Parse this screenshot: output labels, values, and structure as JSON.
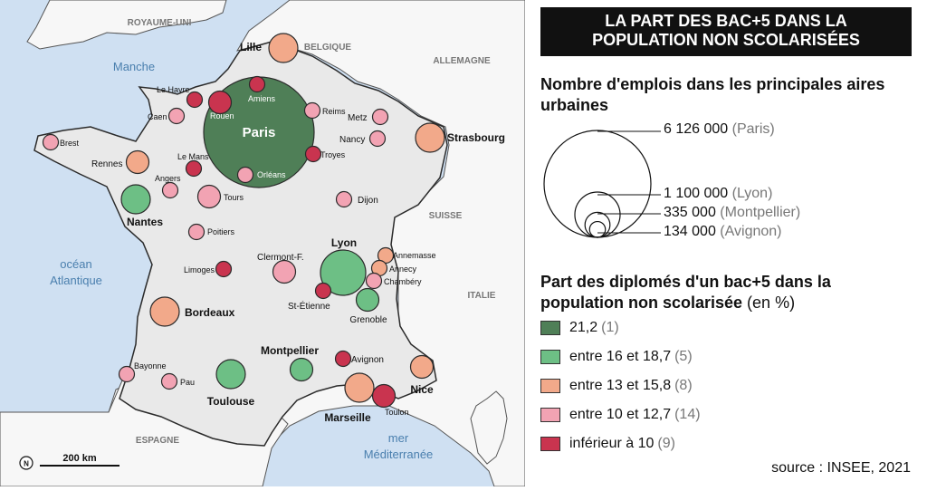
{
  "title": [
    "LA PART DES BAC+5 DANS LA",
    "POPULATION NON SCOLARISÉES"
  ],
  "colors": {
    "sea": "#cfe0f2",
    "land_france": "#e9e9e9",
    "land_other": "#f7f7f7",
    "border": "#2b2b2b",
    "class_1": "#4f7f57",
    "class_2": "#6dbf85",
    "class_3": "#f2a98a",
    "class_4": "#f2a3b3",
    "class_5": "#c9344f"
  },
  "map": {
    "sea_labels": [
      {
        "id": "manche",
        "lines": [
          "Manche"
        ]
      },
      {
        "id": "ocean",
        "lines": [
          "océan",
          "Atlantique"
        ]
      },
      {
        "id": "mer",
        "lines": [
          "mer",
          "Méditerranée"
        ]
      }
    ],
    "country_labels": [
      "ROYAUME-UNI",
      "BELGIQUE",
      "ALLEMAGNE",
      "SUISSE",
      "ITALIE",
      "ESPAGNE"
    ],
    "scale_label": "200 km",
    "north_label": "N",
    "cities": [
      {
        "name": "Paris",
        "cls": 1,
        "size": "xl",
        "bold": true
      },
      {
        "name": "Lyon",
        "cls": 2,
        "size": "l",
        "bold": true
      },
      {
        "name": "Nantes",
        "cls": 2,
        "size": "m",
        "bold": true
      },
      {
        "name": "Toulouse",
        "cls": 2,
        "size": "m",
        "bold": true
      },
      {
        "name": "Montpellier",
        "cls": 2,
        "size": "s",
        "bold": true
      },
      {
        "name": "Grenoble",
        "cls": 2,
        "size": "s",
        "bold": false
      },
      {
        "name": "Lille",
        "cls": 3,
        "size": "m",
        "bold": true
      },
      {
        "name": "Strasbourg",
        "cls": 3,
        "size": "m",
        "bold": true
      },
      {
        "name": "Rennes",
        "cls": 3,
        "size": "s",
        "bold": false
      },
      {
        "name": "Bordeaux",
        "cls": 3,
        "size": "m",
        "bold": true
      },
      {
        "name": "Marseille",
        "cls": 3,
        "size": "m",
        "bold": true
      },
      {
        "name": "Nice",
        "cls": 3,
        "size": "s",
        "bold": true
      },
      {
        "name": "Annemasse",
        "cls": 3,
        "size": "xs",
        "bold": false
      },
      {
        "name": "Annecy",
        "cls": 3,
        "size": "xs",
        "bold": false
      },
      {
        "name": "Brest",
        "cls": 4,
        "size": "xs",
        "bold": false
      },
      {
        "name": "Caen",
        "cls": 4,
        "size": "xs",
        "bold": false
      },
      {
        "name": "Reims",
        "cls": 4,
        "size": "xs",
        "bold": false
      },
      {
        "name": "Metz",
        "cls": 4,
        "size": "xs",
        "bold": false
      },
      {
        "name": "Nancy",
        "cls": 4,
        "size": "xs",
        "bold": false
      },
      {
        "name": "Angers",
        "cls": 4,
        "size": "xs",
        "bold": false
      },
      {
        "name": "Tours",
        "cls": 4,
        "size": "s",
        "bold": false
      },
      {
        "name": "Dijon",
        "cls": 4,
        "size": "xs",
        "bold": false
      },
      {
        "name": "Poitiers",
        "cls": 4,
        "size": "xs",
        "bold": false
      },
      {
        "name": "Clermont-F.",
        "cls": 4,
        "size": "s",
        "bold": false
      },
      {
        "name": "Orléans",
        "cls": 4,
        "size": "xs",
        "bold": false
      },
      {
        "name": "Chambéry",
        "cls": 4,
        "size": "xs",
        "bold": false
      },
      {
        "name": "Bayonne",
        "cls": 4,
        "size": "xs",
        "bold": false
      },
      {
        "name": "Pau",
        "cls": 4,
        "size": "xs",
        "bold": false
      },
      {
        "name": "Le Havre",
        "cls": 5,
        "size": "xs",
        "bold": false
      },
      {
        "name": "Rouen",
        "cls": 5,
        "size": "s",
        "bold": false
      },
      {
        "name": "Amiens",
        "cls": 5,
        "size": "xs",
        "bold": false
      },
      {
        "name": "Troyes",
        "cls": 5,
        "size": "xs",
        "bold": false
      },
      {
        "name": "Le Mans",
        "cls": 5,
        "size": "xs",
        "bold": false
      },
      {
        "name": "Limoges",
        "cls": 5,
        "size": "xs",
        "bold": false
      },
      {
        "name": "St-Étienne",
        "cls": 5,
        "size": "xs",
        "bold": false
      },
      {
        "name": "Avignon",
        "cls": 5,
        "size": "xs",
        "bold": false
      },
      {
        "name": "Toulon",
        "cls": 5,
        "size": "s",
        "bold": false
      }
    ]
  },
  "legend": {
    "size_title": "Nombre d'emplois dans les principales aires urbaines",
    "size_items": [
      {
        "value": "6 126 000",
        "name": "(Paris)",
        "jobs": 6126000
      },
      {
        "value": "1 100 000",
        "name": "(Lyon)",
        "jobs": 1100000
      },
      {
        "value": "335 000",
        "name": "(Montpellier)",
        "jobs": 335000
      },
      {
        "value": "134 000",
        "name": "(Avignon)",
        "jobs": 134000
      }
    ],
    "class_title": "Part des diplomés d'un bac+5 dans la population non scolarisée",
    "class_unit": "(en %)",
    "classes": [
      {
        "label": "21,2",
        "count": "(1)"
      },
      {
        "label": "entre 16 et 18,7",
        "count": "(5)"
      },
      {
        "label": "entre 13 et 15,8",
        "count": "(8)"
      },
      {
        "label": "entre 10 et 12,7",
        "count": "(14)"
      },
      {
        "label": "inférieur à 10",
        "count": "(9)"
      }
    ]
  },
  "source": "source : INSEE, 2021"
}
